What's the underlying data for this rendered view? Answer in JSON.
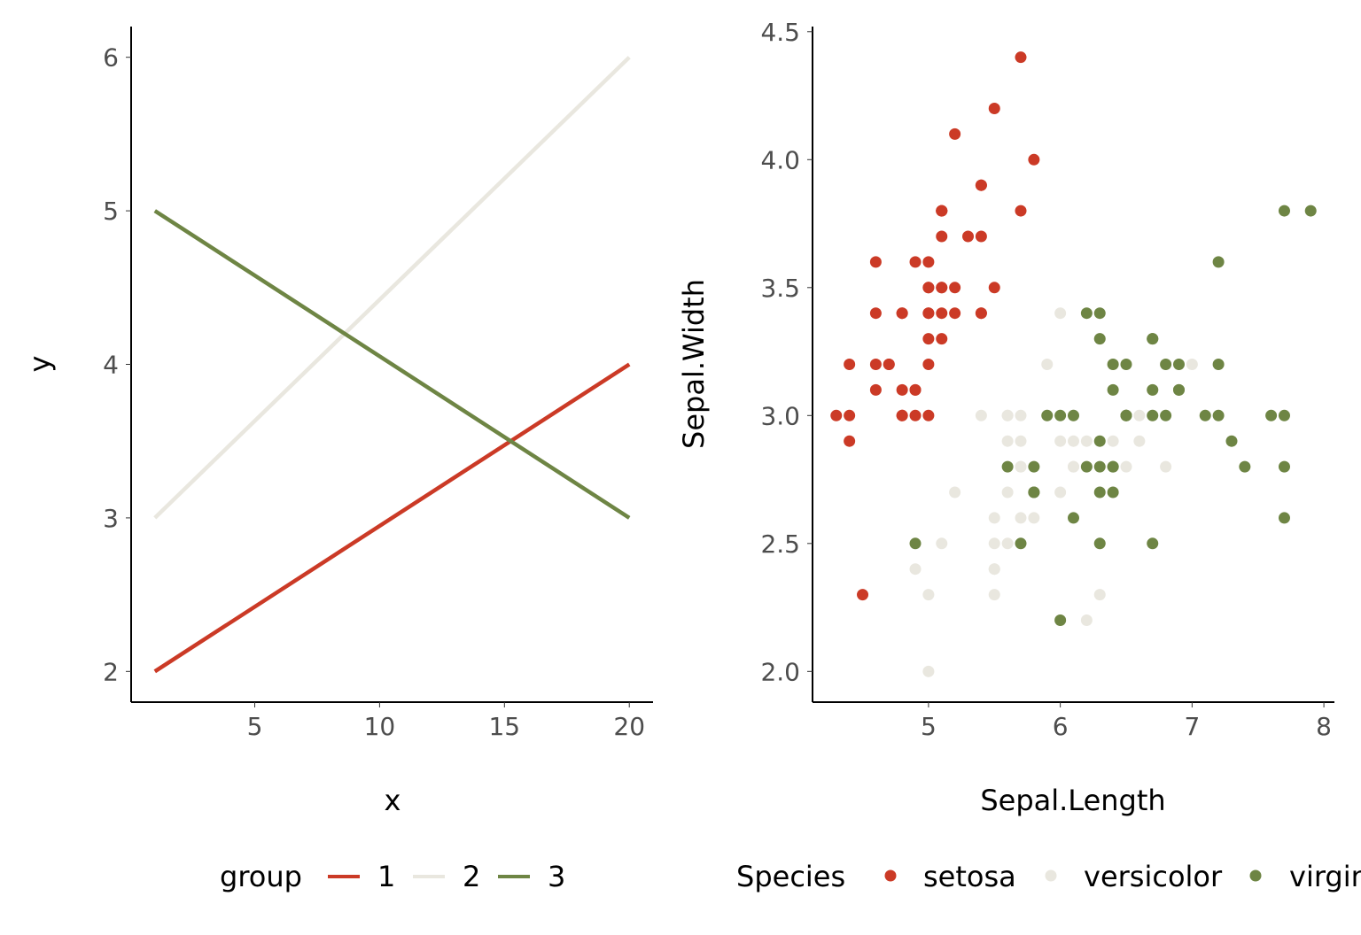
{
  "colors": {
    "c1": "#CB3A26",
    "c2": "#E9E7DF",
    "c3": "#6E8544"
  },
  "chart_data": [
    {
      "type": "line",
      "xlabel": "x",
      "ylabel": "y",
      "xlim": [
        0.05,
        20.95
      ],
      "ylim": [
        1.8,
        6.2
      ],
      "xticks": [
        "5",
        "10",
        "15",
        "20"
      ],
      "yticks": [
        "2",
        "3",
        "4",
        "5",
        "6"
      ],
      "grid": false,
      "legend": {
        "title": "group",
        "position": "bottom",
        "entries": [
          "1",
          "2",
          "3"
        ]
      },
      "series": [
        {
          "name": "1",
          "color": "#CB3A26",
          "x": [
            1,
            20
          ],
          "y": [
            2,
            4
          ]
        },
        {
          "name": "2",
          "color": "#E9E7DF",
          "x": [
            1,
            20
          ],
          "y": [
            3,
            6
          ]
        },
        {
          "name": "3",
          "color": "#6E8544",
          "x": [
            1,
            20
          ],
          "y": [
            5,
            3
          ]
        }
      ]
    },
    {
      "type": "scatter",
      "xlabel": "Sepal.Length",
      "ylabel": "Sepal.Width",
      "xlim": [
        4.12,
        8.08
      ],
      "ylim": [
        1.88,
        4.52
      ],
      "xticks": [
        "5",
        "6",
        "7",
        "8"
      ],
      "yticks": [
        "2.0",
        "2.5",
        "3.0",
        "3.5",
        "4.0",
        "4.5"
      ],
      "grid": false,
      "legend": {
        "title": "Species",
        "position": "bottom",
        "entries": [
          "setosa",
          "versicolor",
          "virginica"
        ]
      },
      "series": [
        {
          "name": "setosa",
          "color": "#CB3A26",
          "points": [
            [
              5.1,
              3.5
            ],
            [
              4.9,
              3.0
            ],
            [
              4.7,
              3.2
            ],
            [
              4.6,
              3.1
            ],
            [
              5.0,
              3.6
            ],
            [
              5.4,
              3.9
            ],
            [
              4.6,
              3.4
            ],
            [
              5.0,
              3.4
            ],
            [
              4.4,
              2.9
            ],
            [
              4.9,
              3.1
            ],
            [
              5.4,
              3.7
            ],
            [
              4.8,
              3.4
            ],
            [
              4.8,
              3.0
            ],
            [
              4.3,
              3.0
            ],
            [
              5.8,
              4.0
            ],
            [
              5.7,
              4.4
            ],
            [
              5.4,
              3.9
            ],
            [
              5.1,
              3.5
            ],
            [
              5.7,
              3.8
            ],
            [
              5.1,
              3.8
            ],
            [
              5.4,
              3.4
            ],
            [
              5.1,
              3.7
            ],
            [
              4.6,
              3.6
            ],
            [
              5.1,
              3.3
            ],
            [
              4.8,
              3.4
            ],
            [
              5.0,
              3.0
            ],
            [
              5.0,
              3.4
            ],
            [
              5.2,
              3.5
            ],
            [
              5.2,
              3.4
            ],
            [
              4.7,
              3.2
            ],
            [
              4.8,
              3.1
            ],
            [
              5.4,
              3.4
            ],
            [
              5.2,
              4.1
            ],
            [
              5.5,
              4.2
            ],
            [
              4.9,
              3.1
            ],
            [
              5.0,
              3.2
            ],
            [
              5.5,
              3.5
            ],
            [
              4.9,
              3.6
            ],
            [
              4.4,
              3.0
            ],
            [
              5.1,
              3.4
            ],
            [
              5.0,
              3.5
            ],
            [
              4.5,
              2.3
            ],
            [
              4.4,
              3.2
            ],
            [
              5.0,
              3.5
            ],
            [
              5.1,
              3.8
            ],
            [
              4.8,
              3.0
            ],
            [
              5.1,
              3.8
            ],
            [
              4.6,
              3.2
            ],
            [
              5.3,
              3.7
            ],
            [
              5.0,
              3.3
            ]
          ]
        },
        {
          "name": "versicolor",
          "color": "#E9E7DF",
          "points": [
            [
              7.0,
              3.2
            ],
            [
              6.4,
              3.2
            ],
            [
              6.9,
              3.1
            ],
            [
              5.5,
              2.3
            ],
            [
              6.5,
              2.8
            ],
            [
              5.7,
              2.8
            ],
            [
              6.3,
              3.3
            ],
            [
              4.9,
              2.4
            ],
            [
              6.6,
              2.9
            ],
            [
              5.2,
              2.7
            ],
            [
              5.0,
              2.0
            ],
            [
              5.9,
              3.0
            ],
            [
              6.0,
              2.2
            ],
            [
              6.1,
              2.9
            ],
            [
              5.6,
              2.9
            ],
            [
              6.7,
              3.1
            ],
            [
              5.6,
              3.0
            ],
            [
              5.8,
              2.7
            ],
            [
              6.2,
              2.2
            ],
            [
              5.6,
              2.5
            ],
            [
              5.9,
              3.2
            ],
            [
              6.1,
              2.8
            ],
            [
              6.3,
              2.5
            ],
            [
              6.1,
              2.8
            ],
            [
              6.4,
              2.9
            ],
            [
              6.6,
              3.0
            ],
            [
              6.8,
              2.8
            ],
            [
              6.7,
              3.0
            ],
            [
              6.0,
              2.9
            ],
            [
              5.7,
              2.6
            ],
            [
              5.5,
              2.4
            ],
            [
              5.5,
              2.4
            ],
            [
              5.8,
              2.7
            ],
            [
              6.0,
              2.7
            ],
            [
              5.4,
              3.0
            ],
            [
              6.0,
              3.4
            ],
            [
              6.7,
              3.1
            ],
            [
              6.3,
              2.3
            ],
            [
              5.6,
              3.0
            ],
            [
              5.5,
              2.5
            ],
            [
              5.5,
              2.6
            ],
            [
              6.1,
              3.0
            ],
            [
              5.8,
              2.6
            ],
            [
              5.0,
              2.3
            ],
            [
              5.6,
              2.7
            ],
            [
              5.7,
              3.0
            ],
            [
              5.7,
              2.9
            ],
            [
              6.2,
              2.9
            ],
            [
              5.1,
              2.5
            ],
            [
              5.7,
              2.8
            ]
          ]
        },
        {
          "name": "virginica",
          "color": "#6E8544",
          "points": [
            [
              6.3,
              3.3
            ],
            [
              5.8,
              2.7
            ],
            [
              7.1,
              3.0
            ],
            [
              6.3,
              2.9
            ],
            [
              6.5,
              3.0
            ],
            [
              7.6,
              3.0
            ],
            [
              4.9,
              2.5
            ],
            [
              7.3,
              2.9
            ],
            [
              6.7,
              2.5
            ],
            [
              7.2,
              3.6
            ],
            [
              6.5,
              3.2
            ],
            [
              6.4,
              2.7
            ],
            [
              6.8,
              3.0
            ],
            [
              5.7,
              2.5
            ],
            [
              5.8,
              2.8
            ],
            [
              6.4,
              3.2
            ],
            [
              6.5,
              3.0
            ],
            [
              7.7,
              3.8
            ],
            [
              7.7,
              2.6
            ],
            [
              6.0,
              2.2
            ],
            [
              6.9,
              3.2
            ],
            [
              5.6,
              2.8
            ],
            [
              7.7,
              2.8
            ],
            [
              6.3,
              2.7
            ],
            [
              6.7,
              3.3
            ],
            [
              7.2,
              3.2
            ],
            [
              6.2,
              2.8
            ],
            [
              6.1,
              3.0
            ],
            [
              6.4,
              2.8
            ],
            [
              7.2,
              3.0
            ],
            [
              7.4,
              2.8
            ],
            [
              7.9,
              3.8
            ],
            [
              6.4,
              2.8
            ],
            [
              6.3,
              2.8
            ],
            [
              6.1,
              2.6
            ],
            [
              7.7,
              3.0
            ],
            [
              6.3,
              3.4
            ],
            [
              6.4,
              3.1
            ],
            [
              6.0,
              3.0
            ],
            [
              6.9,
              3.1
            ],
            [
              6.7,
              3.1
            ],
            [
              6.9,
              3.1
            ],
            [
              5.8,
              2.7
            ],
            [
              6.8,
              3.2
            ],
            [
              6.7,
              3.3
            ],
            [
              6.7,
              3.0
            ],
            [
              6.3,
              2.5
            ],
            [
              6.5,
              3.0
            ],
            [
              6.2,
              3.4
            ],
            [
              5.9,
              3.0
            ]
          ]
        }
      ]
    }
  ]
}
